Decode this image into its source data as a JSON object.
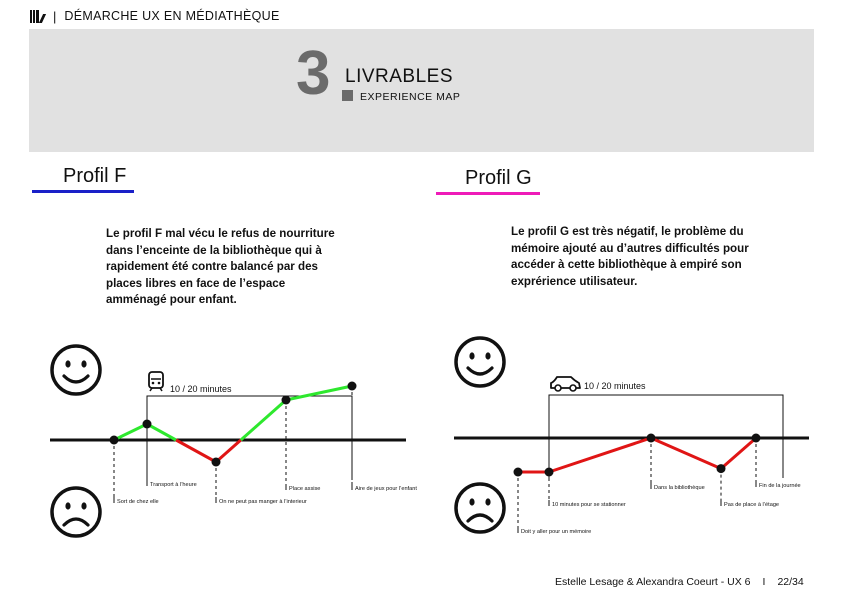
{
  "header": {
    "title": "DÉMARCHE UX EN MÉDIATHÈQUE",
    "logo_icon": "library-books-icon",
    "separator": "|"
  },
  "banner": {
    "number": "3",
    "title": "LIVRABLES",
    "subtitle": "EXPERIENCE MAP"
  },
  "profiles": [
    {
      "title": "Profil F",
      "accent_color": "#1a20c8",
      "description": [
        "Le profil F mal vécu le refus de nourriture",
        "dans l’enceinte de la bibliothèque qui à",
        "rapidement été contre balancé par des",
        "places libres en face de l’espace",
        "amménagé pour enfant."
      ],
      "transport_icon": "train-icon",
      "duration": "10 / 20 minutes",
      "happy_icon": "happy-face-icon",
      "sad_icon": "sad-face-icon",
      "points": [
        {
          "label": "Sort de chez elle",
          "mood": 0
        },
        {
          "label": "Transport à l’heure",
          "mood": 0.4
        },
        {
          "label": "On ne peut pas manger à l’interieur",
          "mood": -0.55
        },
        {
          "label": "Place assise",
          "mood": 1.0
        },
        {
          "label": "Aire de jeux pour l’enfant",
          "mood": 1.35
        }
      ],
      "segment_colors": [
        "#2ee82e",
        "#2ee82e",
        "#e01515",
        "#2ee82e",
        "#2ee82e"
      ]
    },
    {
      "title": "Profil G",
      "accent_color": "#ee1bb8",
      "description": [
        "Le profil G est très négatif, le problème du",
        "mémoire ajouté au d’autres difficultés pour",
        "accéder à cette bibliothèque à empiré son",
        "exprérience utilisateur."
      ],
      "transport_icon": "car-icon",
      "duration": "10 / 20 minutes",
      "happy_icon": "happy-face-icon",
      "sad_icon": "sad-face-icon",
      "points": [
        {
          "label": "Doit y aller pour un mémoire",
          "mood": -1
        },
        {
          "label": "10 minutes pour se stationner",
          "mood": -1
        },
        {
          "label": "Dans la bibliothèque",
          "mood": 0
        },
        {
          "label": "Pas de place à l’étage",
          "mood": -0.9
        },
        {
          "label": "Fin de la journée",
          "mood": 0
        }
      ],
      "segment_colors": [
        "#e01515",
        "#e01515",
        "#e01515",
        "#e01515",
        "#e01515"
      ]
    }
  ],
  "footer": {
    "authors": "Estelle Lesage & Alexandra Coeurt - UX 6",
    "separator": "I",
    "page": "22/34"
  }
}
